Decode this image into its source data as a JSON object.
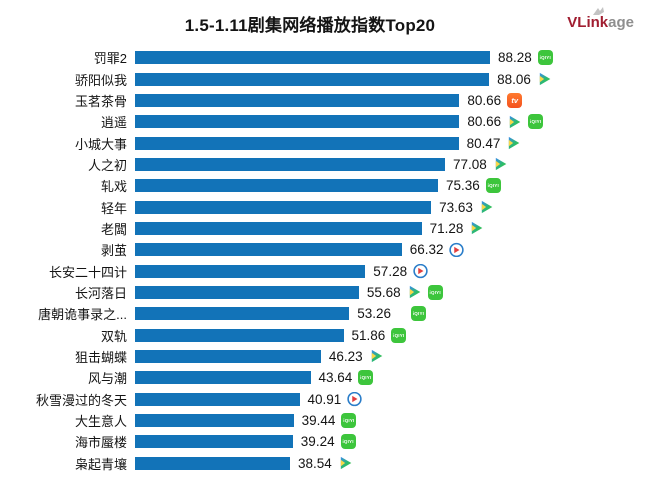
{
  "header": {
    "title": "1.5-1.11剧集网络播放指数Top20",
    "logo": {
      "primary": "VLink",
      "secondary": "age"
    }
  },
  "chart_data": {
    "type": "bar",
    "orientation": "horizontal",
    "title": "1.5-1.11剧集网络播放指数Top20",
    "value_labels": "right_of_bar",
    "grid": false,
    "axes_shown": false,
    "xlim": [
      0,
      88.28
    ],
    "bar_color": "#1273B8",
    "platform_colors": {
      "iqiyi": "#3DC53C",
      "mango": "#F4511E",
      "tencent_blue": "#3B8CEC",
      "tencent_green": "#4FC63F",
      "tencent_yellow": "#F9D849",
      "youku_ring": "#2A7DC9",
      "youku_arrow": "#E23E3E"
    },
    "platform_glyphs": {
      "iqiyi": "iQIYI",
      "mango": "tv"
    },
    "items": [
      {
        "label": "罚罪2",
        "value": 88.28,
        "platforms": [
          "iqiyi"
        ]
      },
      {
        "label": "骄阳似我",
        "value": 88.06,
        "platforms": [
          "tencent"
        ]
      },
      {
        "label": "玉茗茶骨",
        "value": 80.66,
        "platforms": [
          "mango"
        ]
      },
      {
        "label": "逍遥",
        "value": 80.66,
        "platforms": [
          "tencent",
          "iqiyi"
        ]
      },
      {
        "label": "小城大事",
        "value": 80.47,
        "platforms": [
          "tencent"
        ]
      },
      {
        "label": "人之初",
        "value": 77.08,
        "platforms": [
          "tencent"
        ]
      },
      {
        "label": "轧戏",
        "value": 75.36,
        "platforms": [
          "iqiyi"
        ]
      },
      {
        "label": "轻年",
        "value": 73.63,
        "platforms": [
          "tencent"
        ]
      },
      {
        "label": "老闆",
        "value": 71.28,
        "platforms": [
          "tencent"
        ]
      },
      {
        "label": "剥茧",
        "value": 66.32,
        "platforms": [
          "youku"
        ]
      },
      {
        "label": "长安二十四计",
        "value": 57.28,
        "platforms": [
          "youku"
        ]
      },
      {
        "label": "长河落日",
        "value": 55.68,
        "platforms": [
          "tencent",
          "iqiyi"
        ]
      },
      {
        "label": "唐朝诡事录之...",
        "value": 53.26,
        "platforms": [
          "iqiyi"
        ],
        "icon_indent": true
      },
      {
        "label": "双轨",
        "value": 51.86,
        "platforms": [
          "iqiyi"
        ]
      },
      {
        "label": "狙击蝴蝶",
        "value": 46.23,
        "platforms": [
          "tencent"
        ]
      },
      {
        "label": "风与潮",
        "value": 43.64,
        "platforms": [
          "iqiyi"
        ]
      },
      {
        "label": "秋雪漫过的冬天",
        "value": 40.91,
        "platforms": [
          "youku"
        ]
      },
      {
        "label": "大生意人",
        "value": 39.44,
        "platforms": [
          "iqiyi"
        ]
      },
      {
        "label": "海市蜃楼",
        "value": 39.24,
        "platforms": [
          "iqiyi"
        ]
      },
      {
        "label": "枭起青壤",
        "value": 38.54,
        "platforms": [
          "tencent"
        ]
      }
    ]
  }
}
